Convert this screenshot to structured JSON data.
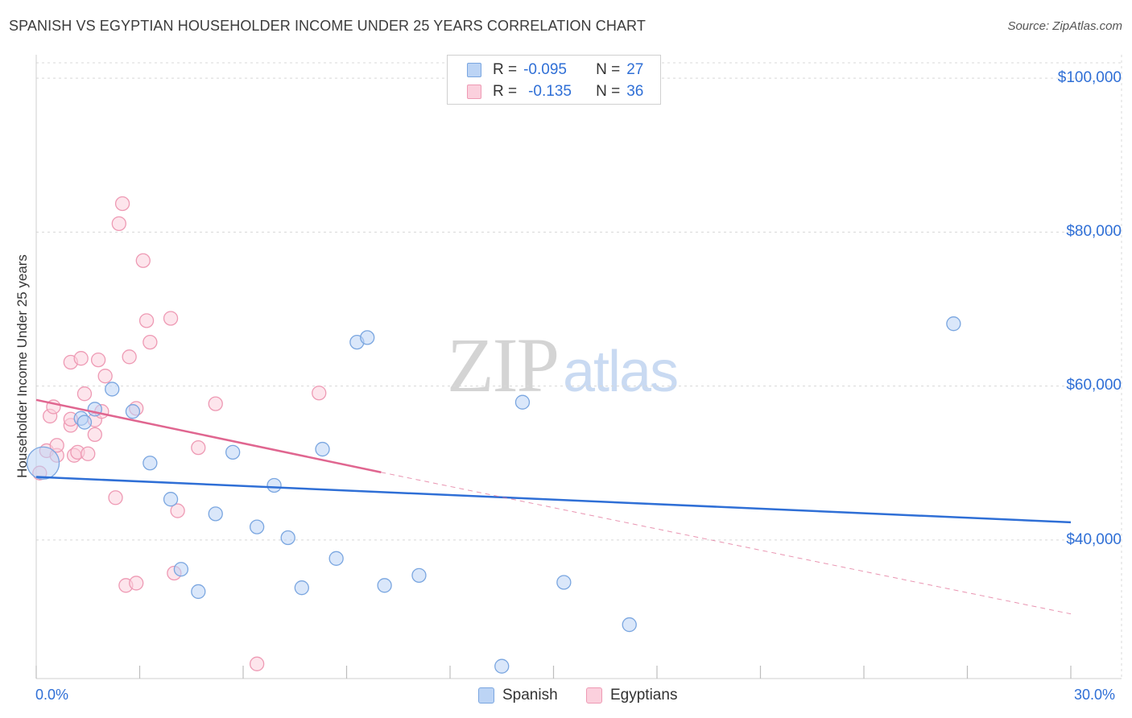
{
  "title": "SPANISH VS EGYPTIAN HOUSEHOLDER INCOME UNDER 25 YEARS CORRELATION CHART",
  "source": "Source: ZipAtlas.com",
  "watermark": {
    "zip": "ZIP",
    "atlas": "atlas"
  },
  "legend_top": {
    "rows": [
      {
        "r_label": "R =",
        "r_value": "-0.095",
        "n_label": "N =",
        "n_value": "27"
      },
      {
        "r_label": "R =",
        "r_value": "-0.135",
        "n_label": "N =",
        "n_value": "36"
      }
    ]
  },
  "legend_bottom": [
    "Spanish",
    "Egyptians"
  ],
  "colors": {
    "spanish_fill": "#bcd4f5",
    "spanish_stroke": "#7aa6e0",
    "spanish_line": "#2f6fd6",
    "egypt_fill": "#fbd0dd",
    "egypt_stroke": "#ee9ab4",
    "egypt_line": "#e06690",
    "tick_text": "#2f6fd6",
    "grid": "#d8d8d8"
  },
  "chart_data": {
    "type": "scatter",
    "xlabel": "",
    "ylabel": "Householder Income Under 25 years",
    "xlim": [
      0,
      30
    ],
    "ylim": [
      22000,
      102000
    ],
    "x_tick_labels": [
      "0.0%",
      "30.0%"
    ],
    "y_ticks": [
      40000,
      60000,
      80000,
      100000
    ],
    "y_tick_labels": [
      "$40,000",
      "$60,000",
      "$80,000",
      "$100,000"
    ],
    "series": [
      {
        "name": "Spanish",
        "points": [
          {
            "x": 0.2,
            "y": 50000,
            "big": true
          },
          {
            "x": 1.3,
            "y": 55800
          },
          {
            "x": 1.7,
            "y": 57000
          },
          {
            "x": 2.2,
            "y": 59600
          },
          {
            "x": 2.8,
            "y": 56700
          },
          {
            "x": 3.3,
            "y": 50000
          },
          {
            "x": 3.9,
            "y": 45300
          },
          {
            "x": 4.2,
            "y": 36200
          },
          {
            "x": 4.7,
            "y": 33300
          },
          {
            "x": 5.2,
            "y": 43400
          },
          {
            "x": 5.7,
            "y": 51400
          },
          {
            "x": 6.4,
            "y": 41700
          },
          {
            "x": 6.9,
            "y": 47100
          },
          {
            "x": 7.3,
            "y": 40300
          },
          {
            "x": 7.7,
            "y": 33800
          },
          {
            "x": 8.3,
            "y": 51800
          },
          {
            "x": 8.7,
            "y": 37600
          },
          {
            "x": 9.3,
            "y": 65700
          },
          {
            "x": 9.6,
            "y": 66300
          },
          {
            "x": 10.1,
            "y": 34100
          },
          {
            "x": 11.1,
            "y": 35400
          },
          {
            "x": 13.5,
            "y": 23600
          },
          {
            "x": 14.1,
            "y": 57900
          },
          {
            "x": 15.3,
            "y": 34500
          },
          {
            "x": 17.2,
            "y": 29000
          },
          {
            "x": 26.6,
            "y": 68100
          },
          {
            "x": 1.4,
            "y": 55300
          }
        ],
        "trend": {
          "x0": 0,
          "y0": 48200,
          "x1": 30,
          "y1": 42300
        }
      },
      {
        "name": "Egyptians",
        "points": [
          {
            "x": 0.1,
            "y": 48700
          },
          {
            "x": 0.3,
            "y": 51600
          },
          {
            "x": 0.4,
            "y": 56100
          },
          {
            "x": 0.5,
            "y": 57300
          },
          {
            "x": 0.6,
            "y": 51000
          },
          {
            "x": 0.6,
            "y": 52300
          },
          {
            "x": 1.0,
            "y": 54900
          },
          {
            "x": 1.0,
            "y": 55700
          },
          {
            "x": 1.0,
            "y": 63100
          },
          {
            "x": 1.1,
            "y": 51000
          },
          {
            "x": 1.2,
            "y": 51400
          },
          {
            "x": 1.3,
            "y": 63600
          },
          {
            "x": 1.4,
            "y": 59000
          },
          {
            "x": 1.5,
            "y": 51200
          },
          {
            "x": 1.7,
            "y": 53700
          },
          {
            "x": 1.7,
            "y": 55600
          },
          {
            "x": 1.8,
            "y": 63400
          },
          {
            "x": 1.9,
            "y": 56700
          },
          {
            "x": 2.0,
            "y": 61300
          },
          {
            "x": 2.3,
            "y": 45500
          },
          {
            "x": 2.4,
            "y": 81100
          },
          {
            "x": 2.5,
            "y": 83700
          },
          {
            "x": 2.6,
            "y": 34100
          },
          {
            "x": 2.7,
            "y": 63800
          },
          {
            "x": 2.9,
            "y": 34400
          },
          {
            "x": 2.9,
            "y": 57100
          },
          {
            "x": 3.1,
            "y": 76300
          },
          {
            "x": 3.2,
            "y": 68500
          },
          {
            "x": 3.3,
            "y": 65700
          },
          {
            "x": 3.9,
            "y": 68800
          },
          {
            "x": 4.0,
            "y": 35700
          },
          {
            "x": 4.1,
            "y": 43800
          },
          {
            "x": 4.7,
            "y": 52000
          },
          {
            "x": 5.2,
            "y": 57700
          },
          {
            "x": 6.4,
            "y": 23900
          },
          {
            "x": 8.2,
            "y": 59100
          }
        ],
        "trend": {
          "x0": 0,
          "y0": 58200,
          "x1": 10,
          "y1": 48800
        },
        "trend_extension": {
          "x0": 10,
          "y0": 48800,
          "x1": 30,
          "y1": 30400
        }
      }
    ]
  }
}
